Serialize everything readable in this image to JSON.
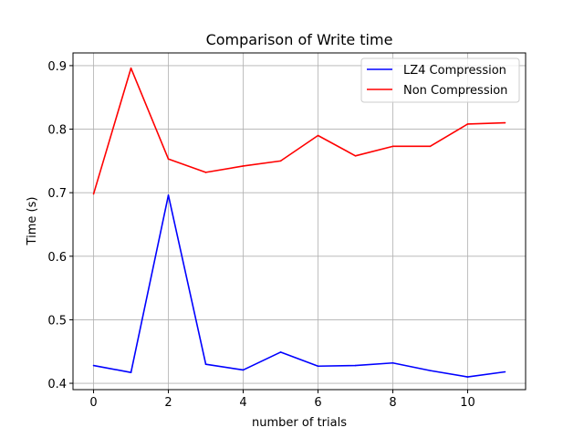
{
  "chart_data": {
    "type": "line",
    "title": "Comparison of Write time",
    "xlabel": "number of trials",
    "ylabel": "Time (s)",
    "xlim": [
      -0.55,
      11.55
    ],
    "ylim": [
      0.39,
      0.92
    ],
    "xticks": [
      0,
      2,
      4,
      6,
      8,
      10
    ],
    "yticks": [
      0.4,
      0.5,
      0.6,
      0.7,
      0.8,
      0.9
    ],
    "grid": true,
    "legend_position": "top-right",
    "x": [
      0,
      1,
      2,
      3,
      4,
      5,
      6,
      7,
      8,
      9,
      10,
      11
    ],
    "series": [
      {
        "name": "LZ4 Compression",
        "color": "#0000ff",
        "values": [
          0.428,
          0.417,
          0.696,
          0.43,
          0.421,
          0.449,
          0.427,
          0.428,
          0.432,
          0.42,
          0.41,
          0.418
        ]
      },
      {
        "name": "Non Compression",
        "color": "#ff0000",
        "values": [
          0.698,
          0.896,
          0.753,
          0.732,
          0.742,
          0.75,
          0.79,
          0.758,
          0.773,
          0.773,
          0.808,
          0.81
        ]
      }
    ]
  }
}
